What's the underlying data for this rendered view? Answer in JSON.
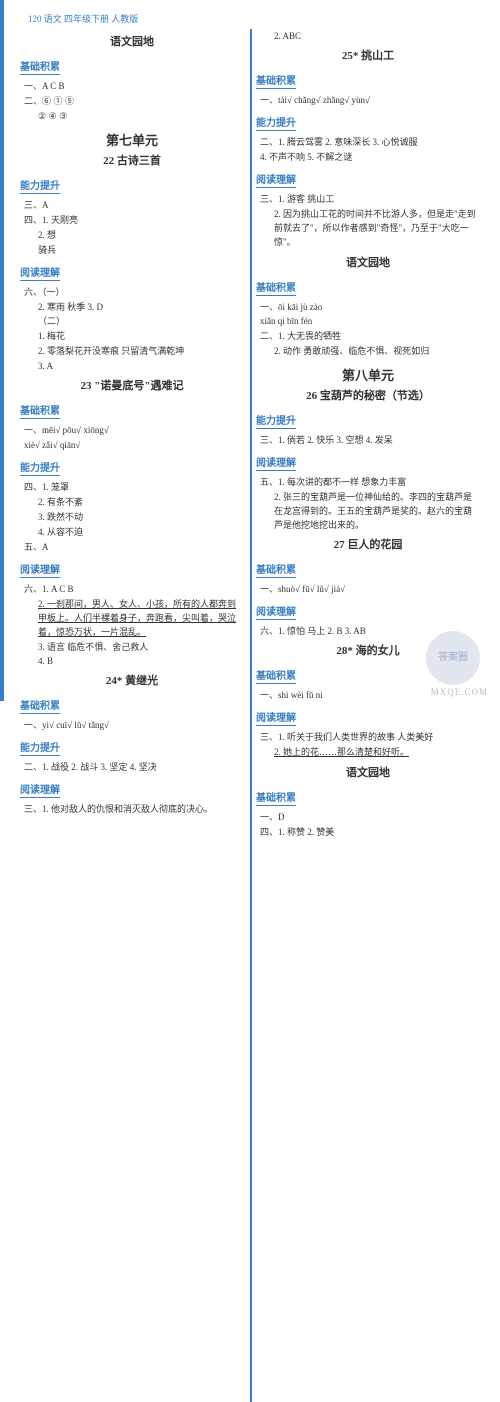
{
  "header": "120  语文  四年级下册  人教版",
  "colors": {
    "primary": "#3a7fc4",
    "text": "#333333",
    "bg": "#ffffff"
  },
  "left": {
    "garden1_title": "语文园地",
    "jichu1_head": "基础积累",
    "l1": "一、A  C  B",
    "l2_a": "二、⑥ ① ⑤",
    "l2_b": "    ② ④ ③",
    "unit7": "第七单元",
    "lesson22": "22  古诗三首",
    "nengli22_head": "能力提升",
    "n22_1": "三、A",
    "n22_2": "四、1. 天刚亮",
    "n22_3": "2. 想",
    "n22_4": "骑兵",
    "yuedu22_head": "阅读理解",
    "y22_1": "六、（一）",
    "y22_2": "2. 寒雨  秋季  3. D",
    "y22_3": "（二）",
    "y22_4": "1. 梅花",
    "y22_5": "2. 零落梨花开没寒痕  只留清气满乾坤",
    "y22_6": "3. A",
    "lesson23": "23  \"诺曼底号\"遇难记",
    "jichu23_head": "基础积累",
    "j23_1": "一、mēi√  pōu√  xiōng√",
    "j23_2": "    xiè√  zǎi√  qiān√",
    "nengli23_head": "能力提升",
    "n23_1": "四、1. 笼罩",
    "n23_2": "2. 有条不紊",
    "n23_3": "3. 跌然不动",
    "n23_4": "4. 从容不迫",
    "n23_5": "五、A",
    "yuedu23_head": "阅读理解",
    "y23_1": "六、1. A  C  B",
    "y23_2": "2. 一刹那间，男人、女人、小孩，所有的人都奔到甲板上。人们半裸着身子，奔跑看，尖叫着，哭泣着，惊恐万状，一片混乱。",
    "y23_3": "3. 语言  临危不惧、舍己救人",
    "y23_4": "4. B",
    "lesson24": "24*  黄继光",
    "jichu24_head": "基础积累",
    "j24_1": "一、yì√  cuī√  lǔ√  tǎng√",
    "nengli24_head": "能力提升",
    "n24_1": "二、1. 战役  2. 战斗  3. 坚定  4. 坚决",
    "yuedu24_head": "阅读理解",
    "y24_1": "三、1. 他对敌人的仇恨和消灭敌人彻底的决心。"
  },
  "right": {
    "r_top": "2. ABC",
    "lesson25": "25*  挑山工",
    "jichu25_head": "基础积累",
    "j25_1": "一、tài√  chǎng√  zhǎng√  yùn√",
    "nengli25_head": "能力提升",
    "n25_1": "二、1. 腾云驾雾  2. 意味深长  3. 心悦诚服",
    "n25_2": "    4. 不声不响  5. 不解之谜",
    "yuedu25_head": "阅读理解",
    "y25_1": "三、1. 游客  挑山工",
    "y25_2": "2. 因为挑山工花的时间并不比游人多，但是走\"走到前就去了\"，所以作者感到\"奇怪\"，乃至于\"大吃一惊\"。",
    "garden2_title": "语文园地",
    "jichu_g2_head": "基础积累",
    "jg2_1": "一、ōi  kāi  jù  zào",
    "jg2_2": "    xiǎn  qí  bīn  fén",
    "jg2_3": "二、1. 大无畏的牺牲",
    "jg2_4": "2. 动作  勇敢顽强、临危不惧、视死如归",
    "unit8": "第八单元",
    "lesson26": "26  宝葫芦的秘密（节选）",
    "nengli26_head": "能力提升",
    "n26_1": "三、1. 倘若  2. 快乐  3. 空想  4. 发呆",
    "yuedu26_head": "阅读理解",
    "y26_1": "五、1. 每次讲的都不一样  想象力丰富",
    "y26_2": "2. 张三的宝葫芦是一位神仙给的。李四的宝葫芦是在龙宫得到的。王五的宝葫芦是奖的。赵六的宝葫芦是他挖地挖出来的。",
    "lesson27": "27  巨人的花园",
    "jichu27_head": "基础积累",
    "j27_1": "一、shuò√  fū√  lǔ√  jiá√",
    "yuedu27_head": "阅读理解",
    "y27_1": "六、1. 惊怕  马上  2. B  3. AB",
    "lesson28": "28*  海的女儿",
    "jichu28_head": "基础积累",
    "j28_1": "一、shì  wèi  fǔ  nì",
    "yuedu28_head": "阅读理解",
    "y28_1": "三、1. 听关于我们人类世界的故事  人类美好",
    "y28_2": "2. 她上的花……那么清楚和好听。",
    "garden3_title": "语文园地",
    "jichu_g3_head": "基础积累",
    "jg3_1": "一、D",
    "jg3_2": "四、1. 称赞  2. 赞美"
  },
  "watermark": "答案圈",
  "wm_site": "MXQE.COM"
}
